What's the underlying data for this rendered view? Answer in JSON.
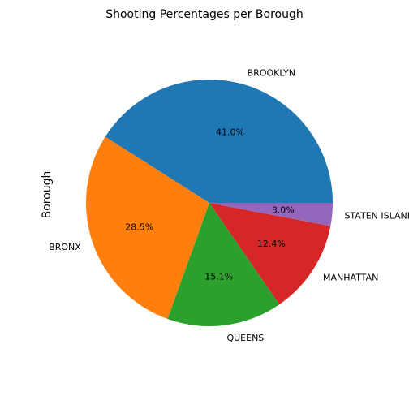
{
  "chart_data": {
    "type": "pie",
    "title": "Shooting Percentages per Borough",
    "ylabel": "Borough",
    "categories": [
      "BROOKLYN",
      "BRONX",
      "QUEENS",
      "MANHATTAN",
      "STATEN ISLAND"
    ],
    "values": [
      41.0,
      28.5,
      15.1,
      12.4,
      3.0
    ],
    "value_labels": [
      "41.0%",
      "28.5%",
      "15.1%",
      "12.4%",
      "3.0%"
    ],
    "colors": [
      "#1f77b4",
      "#ff7f0e",
      "#2ca02c",
      "#d62728",
      "#9467bd"
    ],
    "start_angle_deg": 0,
    "direction": "counterclockwise"
  }
}
